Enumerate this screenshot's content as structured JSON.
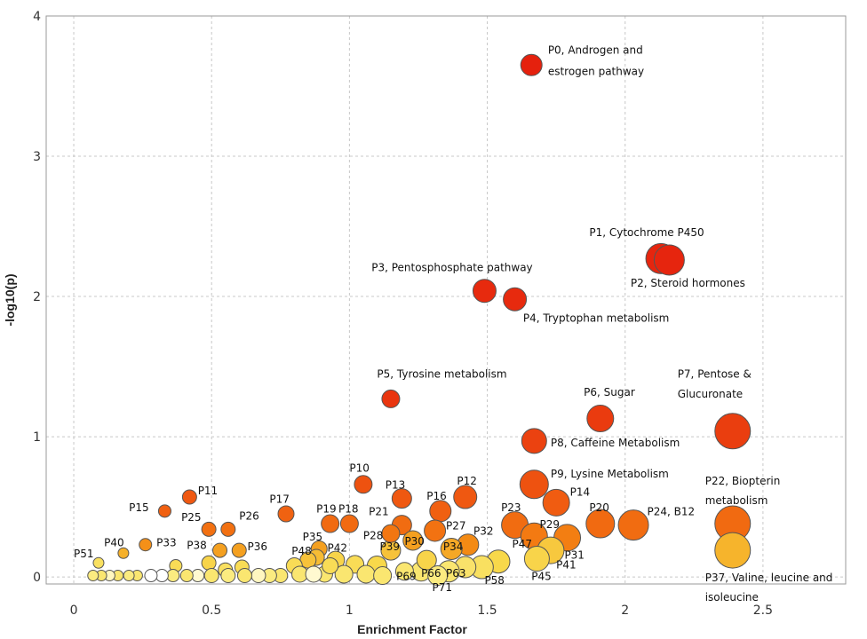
{
  "chart_data": {
    "type": "scatter",
    "title": "",
    "xlabel": "Enrichment Factor",
    "ylabel": "-log10(p)",
    "xlim": [
      -0.1,
      2.8
    ],
    "ylim": [
      -0.05,
      4.0
    ],
    "xticks": [
      "0",
      "0.5",
      "1",
      "1.5",
      "2",
      "2.5"
    ],
    "xtick_values": [
      0,
      0.5,
      1,
      1.5,
      2,
      2.5
    ],
    "yticks": [
      "0",
      "1",
      "2",
      "3",
      "4"
    ],
    "ytick_values": [
      0,
      1,
      2,
      3,
      4
    ],
    "grid": true,
    "colors": {
      "high": "#e8200c",
      "mid": "#f07010",
      "low": "#f6d84a",
      "zero": "#ffffff",
      "edge": "#555555"
    },
    "points": [
      {
        "id": "P0",
        "x": 1.66,
        "y": 3.65,
        "size": 12,
        "color": "#e5210d"
      },
      {
        "id": "P1",
        "x": 2.13,
        "y": 2.27,
        "size": 17,
        "color": "#e6250e"
      },
      {
        "id": "P2",
        "x": 2.16,
        "y": 2.26,
        "size": 17,
        "color": "#e6250e"
      },
      {
        "id": "P3",
        "x": 1.49,
        "y": 2.04,
        "size": 13,
        "color": "#e72a0e"
      },
      {
        "id": "P4",
        "x": 1.6,
        "y": 1.98,
        "size": 13,
        "color": "#e72a0e"
      },
      {
        "id": "P5",
        "x": 1.15,
        "y": 1.27,
        "size": 10,
        "color": "#e9350f"
      },
      {
        "id": "P6",
        "x": 1.91,
        "y": 1.13,
        "size": 15,
        "color": "#ea3b0f"
      },
      {
        "id": "P7",
        "x": 2.39,
        "y": 1.04,
        "size": 20,
        "color": "#ea3e0f"
      },
      {
        "id": "P8",
        "x": 1.67,
        "y": 0.97,
        "size": 14,
        "color": "#eb4210"
      },
      {
        "id": "P9",
        "x": 1.67,
        "y": 0.66,
        "size": 16,
        "color": "#ee5210"
      },
      {
        "id": "P10",
        "x": 1.05,
        "y": 0.66,
        "size": 10,
        "color": "#ee5210"
      },
      {
        "id": "P11",
        "x": 0.42,
        "y": 0.57,
        "size": 8,
        "color": "#ef5811"
      },
      {
        "id": "P12",
        "x": 1.42,
        "y": 0.57,
        "size": 13,
        "color": "#ef5811"
      },
      {
        "id": "P13",
        "x": 1.19,
        "y": 0.56,
        "size": 11,
        "color": "#ef5811"
      },
      {
        "id": "P14",
        "x": 1.75,
        "y": 0.53,
        "size": 15,
        "color": "#f05c11"
      },
      {
        "id": "P15",
        "x": 0.33,
        "y": 0.47,
        "size": 7,
        "color": "#f06011"
      },
      {
        "id": "P16",
        "x": 1.33,
        "y": 0.47,
        "size": 12,
        "color": "#f06011"
      },
      {
        "id": "P17",
        "x": 0.77,
        "y": 0.45,
        "size": 9,
        "color": "#f06211"
      },
      {
        "id": "P18",
        "x": 1.0,
        "y": 0.38,
        "size": 10,
        "color": "#f16a11"
      },
      {
        "id": "P19",
        "x": 0.93,
        "y": 0.38,
        "size": 10,
        "color": "#f16a11"
      },
      {
        "id": "P20",
        "x": 1.91,
        "y": 0.38,
        "size": 16,
        "color": "#f16a11"
      },
      {
        "id": "P21",
        "x": 1.19,
        "y": 0.37,
        "size": 11,
        "color": "#f16c11"
      },
      {
        "id": "P22",
        "x": 2.39,
        "y": 0.38,
        "size": 20,
        "color": "#f16a11"
      },
      {
        "id": "P23",
        "x": 1.6,
        "y": 0.37,
        "size": 15,
        "color": "#f16c11"
      },
      {
        "id": "P24",
        "x": 2.03,
        "y": 0.37,
        "size": 17,
        "color": "#f16c11"
      },
      {
        "id": "P25",
        "x": 0.49,
        "y": 0.34,
        "size": 8,
        "color": "#f27011"
      },
      {
        "id": "P26",
        "x": 0.56,
        "y": 0.34,
        "size": 8,
        "color": "#f27011"
      },
      {
        "id": "P27",
        "x": 1.31,
        "y": 0.33,
        "size": 12,
        "color": "#f27211"
      },
      {
        "id": "P28",
        "x": 1.15,
        "y": 0.31,
        "size": 10,
        "color": "#f27611"
      },
      {
        "id": "P29",
        "x": 1.67,
        "y": 0.29,
        "size": 15,
        "color": "#f37a12"
      },
      {
        "id": "P30",
        "x": 1.23,
        "y": 0.26,
        "size": 11,
        "color": "#f4a020"
      },
      {
        "id": "P31",
        "x": 1.79,
        "y": 0.28,
        "size": 15,
        "color": "#f37e12"
      },
      {
        "id": "P32",
        "x": 1.43,
        "y": 0.23,
        "size": 12,
        "color": "#f38a14"
      },
      {
        "id": "P33",
        "x": 0.26,
        "y": 0.23,
        "size": 7,
        "color": "#f49018"
      },
      {
        "id": "P34",
        "x": 1.37,
        "y": 0.2,
        "size": 12,
        "color": "#f5a826"
      },
      {
        "id": "P35",
        "x": 0.89,
        "y": 0.2,
        "size": 9,
        "color": "#f4a020"
      },
      {
        "id": "P36",
        "x": 0.6,
        "y": 0.19,
        "size": 8,
        "color": "#f4a020"
      },
      {
        "id": "P37",
        "x": 2.39,
        "y": 0.19,
        "size": 20,
        "color": "#f6b42c"
      },
      {
        "id": "P38",
        "x": 0.53,
        "y": 0.19,
        "size": 8,
        "color": "#f4a020"
      },
      {
        "id": "P39",
        "x": 1.15,
        "y": 0.19,
        "size": 11,
        "color": "#f6c23a"
      },
      {
        "id": "P40",
        "x": 0.18,
        "y": 0.17,
        "size": 6,
        "color": "#f5b02a"
      },
      {
        "id": "P41",
        "x": 1.73,
        "y": 0.19,
        "size": 15,
        "color": "#f7c83e"
      },
      {
        "id": "P42",
        "x": 0.88,
        "y": 0.14,
        "size": 9,
        "color": "#f6bc34"
      },
      {
        "id": "P45",
        "x": 1.68,
        "y": 0.13,
        "size": 14,
        "color": "#f8d44a"
      },
      {
        "id": "P47",
        "x": 1.54,
        "y": 0.11,
        "size": 13,
        "color": "#f8d84a"
      },
      {
        "id": "P48",
        "x": 0.85,
        "y": 0.12,
        "size": 9,
        "color": "#f6c23a"
      },
      {
        "id": "P51",
        "x": 0.09,
        "y": 0.1,
        "size": 6,
        "color": "#f9e060"
      },
      {
        "id": "P58",
        "x": 1.48,
        "y": 0.07,
        "size": 13,
        "color": "#f9e060"
      },
      {
        "id": "P63",
        "x": 1.42,
        "y": 0.07,
        "size": 12,
        "color": "#f9e26a"
      },
      {
        "id": "P66",
        "x": 1.26,
        "y": 0.04,
        "size": 11,
        "color": "#fae670"
      },
      {
        "id": "P69",
        "x": 1.2,
        "y": 0.04,
        "size": 10,
        "color": "#fae670"
      },
      {
        "id": "P71",
        "x": 1.36,
        "y": 0.04,
        "size": 12,
        "color": "#fae670"
      },
      {
        "id": "",
        "x": 1.28,
        "y": 0.12,
        "size": 11,
        "color": "#f8d44a"
      },
      {
        "id": "",
        "x": 1.1,
        "y": 0.08,
        "size": 11,
        "color": "#f8d84a"
      },
      {
        "id": "",
        "x": 1.02,
        "y": 0.09,
        "size": 10,
        "color": "#f9dc56"
      },
      {
        "id": "",
        "x": 0.95,
        "y": 0.12,
        "size": 10,
        "color": "#f8d44a"
      },
      {
        "id": "",
        "x": 0.98,
        "y": 0.02,
        "size": 10,
        "color": "#fae670"
      },
      {
        "id": "",
        "x": 1.06,
        "y": 0.02,
        "size": 10,
        "color": "#fae670"
      },
      {
        "id": "",
        "x": 0.91,
        "y": 0.02,
        "size": 9,
        "color": "#fae670"
      },
      {
        "id": "",
        "x": 0.8,
        "y": 0.08,
        "size": 9,
        "color": "#f9dc56"
      },
      {
        "id": "",
        "x": 0.82,
        "y": 0.02,
        "size": 9,
        "color": "#fae670"
      },
      {
        "id": "",
        "x": 0.87,
        "y": 0.02,
        "size": 9,
        "color": "#fff9d0"
      },
      {
        "id": "",
        "x": 0.75,
        "y": 0.01,
        "size": 8,
        "color": "#fae670"
      },
      {
        "id": "",
        "x": 0.71,
        "y": 0.01,
        "size": 8,
        "color": "#fbeb80"
      },
      {
        "id": "",
        "x": 0.67,
        "y": 0.01,
        "size": 8,
        "color": "#fff6c0"
      },
      {
        "id": "",
        "x": 0.61,
        "y": 0.07,
        "size": 8,
        "color": "#f9dc56"
      },
      {
        "id": "",
        "x": 0.62,
        "y": 0.01,
        "size": 8,
        "color": "#fae670"
      },
      {
        "id": "",
        "x": 0.55,
        "y": 0.05,
        "size": 8,
        "color": "#f9e060"
      },
      {
        "id": "",
        "x": 0.56,
        "y": 0.01,
        "size": 8,
        "color": "#fbeb80"
      },
      {
        "id": "",
        "x": 0.49,
        "y": 0.1,
        "size": 8,
        "color": "#f8d44a"
      },
      {
        "id": "",
        "x": 0.5,
        "y": 0.01,
        "size": 8,
        "color": "#fae670"
      },
      {
        "id": "",
        "x": 0.45,
        "y": 0.01,
        "size": 7,
        "color": "#fff9d0"
      },
      {
        "id": "",
        "x": 0.41,
        "y": 0.01,
        "size": 7,
        "color": "#fae670"
      },
      {
        "id": "",
        "x": 0.37,
        "y": 0.08,
        "size": 7,
        "color": "#f9dc56"
      },
      {
        "id": "",
        "x": 0.36,
        "y": 0.01,
        "size": 7,
        "color": "#fbeb80"
      },
      {
        "id": "",
        "x": 0.32,
        "y": 0.01,
        "size": 7,
        "color": "#ffffff"
      },
      {
        "id": "",
        "x": 0.28,
        "y": 0.01,
        "size": 7,
        "color": "#ffffff"
      },
      {
        "id": "",
        "x": 0.23,
        "y": 0.01,
        "size": 6,
        "color": "#fae670"
      },
      {
        "id": "",
        "x": 0.2,
        "y": 0.01,
        "size": 6,
        "color": "#fbeb80"
      },
      {
        "id": "",
        "x": 0.16,
        "y": 0.01,
        "size": 6,
        "color": "#fae670"
      },
      {
        "id": "",
        "x": 0.13,
        "y": 0.01,
        "size": 6,
        "color": "#fff6c0"
      },
      {
        "id": "",
        "x": 0.1,
        "y": 0.01,
        "size": 6,
        "color": "#fae670"
      },
      {
        "id": "",
        "x": 0.07,
        "y": 0.01,
        "size": 6,
        "color": "#fbeb80"
      },
      {
        "id": "",
        "x": 1.12,
        "y": 0.01,
        "size": 10,
        "color": "#fae670"
      },
      {
        "id": "",
        "x": 1.32,
        "y": 0.01,
        "size": 11,
        "color": "#fbeb80"
      },
      {
        "id": "",
        "x": 0.93,
        "y": 0.08,
        "size": 9,
        "color": "#f9dc56"
      }
    ],
    "annotations": [
      {
        "text": "P0, Androgen and",
        "x": 1.72,
        "y": 3.73
      },
      {
        "text": "estrogen pathway",
        "x": 1.72,
        "y": 3.58
      },
      {
        "text": "P1, Cytochrome P450",
        "x": 1.87,
        "y": 2.43
      },
      {
        "text": "P2, Steroid hormones",
        "x": 2.02,
        "y": 2.07
      },
      {
        "text": "P3, Pentosphosphate pathway",
        "x": 1.08,
        "y": 2.18
      },
      {
        "text": "P4, Tryptophan metabolism",
        "x": 1.63,
        "y": 1.82
      },
      {
        "text": "P5, Tyrosine metabolism",
        "x": 1.1,
        "y": 1.42
      },
      {
        "text": "P6, Sugar",
        "x": 1.85,
        "y": 1.29
      },
      {
        "text": "P7, Pentose &",
        "x": 2.19,
        "y": 1.42
      },
      {
        "text": "Glucuronate",
        "x": 2.19,
        "y": 1.28
      },
      {
        "text": "P8, Caffeine Metabolism",
        "x": 1.73,
        "y": 0.93
      },
      {
        "text": "P9, Lysine Metabolism",
        "x": 1.73,
        "y": 0.71
      },
      {
        "text": "P22, Biopterin",
        "x": 2.29,
        "y": 0.66
      },
      {
        "text": "metabolism",
        "x": 2.29,
        "y": 0.52
      },
      {
        "text": "P37, Valine, leucine and",
        "x": 2.29,
        "y": -0.03
      },
      {
        "text": "isoleucine",
        "x": 2.29,
        "y": -0.17
      },
      {
        "text": "P10",
        "x": 1.0,
        "y": 0.75
      },
      {
        "text": "P11",
        "x": 0.45,
        "y": 0.59
      },
      {
        "text": "P12",
        "x": 1.39,
        "y": 0.66
      },
      {
        "text": "P13",
        "x": 1.13,
        "y": 0.63
      },
      {
        "text": "P14",
        "x": 1.8,
        "y": 0.58
      },
      {
        "text": "P15",
        "x": 0.2,
        "y": 0.47
      },
      {
        "text": "P16",
        "x": 1.28,
        "y": 0.55
      },
      {
        "text": "P17",
        "x": 0.71,
        "y": 0.53
      },
      {
        "text": "P18",
        "x": 0.96,
        "y": 0.46
      },
      {
        "text": "P19",
        "x": 0.88,
        "y": 0.46
      },
      {
        "text": "P20",
        "x": 1.87,
        "y": 0.47
      },
      {
        "text": "P21",
        "x": 1.07,
        "y": 0.44
      },
      {
        "text": "P23",
        "x": 1.55,
        "y": 0.47
      },
      {
        "text": "P24, B12",
        "x": 2.08,
        "y": 0.44
      },
      {
        "text": "P25",
        "x": 0.39,
        "y": 0.4
      },
      {
        "text": "P26",
        "x": 0.6,
        "y": 0.41
      },
      {
        "text": "P27",
        "x": 1.35,
        "y": 0.34
      },
      {
        "text": "P28",
        "x": 1.05,
        "y": 0.27
      },
      {
        "text": "P29",
        "x": 1.69,
        "y": 0.35
      },
      {
        "text": "P30",
        "x": 1.2,
        "y": 0.23
      },
      {
        "text": "P31",
        "x": 1.78,
        "y": 0.13
      },
      {
        "text": "P32",
        "x": 1.45,
        "y": 0.3
      },
      {
        "text": "P33",
        "x": 0.3,
        "y": 0.22
      },
      {
        "text": "P34",
        "x": 1.34,
        "y": 0.19
      },
      {
        "text": "P35",
        "x": 0.83,
        "y": 0.26
      },
      {
        "text": "P36",
        "x": 0.63,
        "y": 0.19
      },
      {
        "text": "P38",
        "x": 0.41,
        "y": 0.2
      },
      {
        "text": "P39",
        "x": 1.11,
        "y": 0.19
      },
      {
        "text": "P40",
        "x": 0.11,
        "y": 0.22
      },
      {
        "text": "P41",
        "x": 1.75,
        "y": 0.06
      },
      {
        "text": "P42",
        "x": 0.92,
        "y": 0.18
      },
      {
        "text": "P45",
        "x": 1.66,
        "y": -0.02
      },
      {
        "text": "P47",
        "x": 1.59,
        "y": 0.21
      },
      {
        "text": "P48",
        "x": 0.79,
        "y": 0.16
      },
      {
        "text": "P51",
        "x": 0.0,
        "y": 0.14
      },
      {
        "text": "P58",
        "x": 1.49,
        "y": -0.05
      },
      {
        "text": "P63",
        "x": 1.35,
        "y": 0.0
      },
      {
        "text": "P66",
        "x": 1.26,
        "y": 0.0
      },
      {
        "text": "P69",
        "x": 1.17,
        "y": -0.02
      },
      {
        "text": "P71",
        "x": 1.3,
        "y": -0.1
      }
    ]
  }
}
